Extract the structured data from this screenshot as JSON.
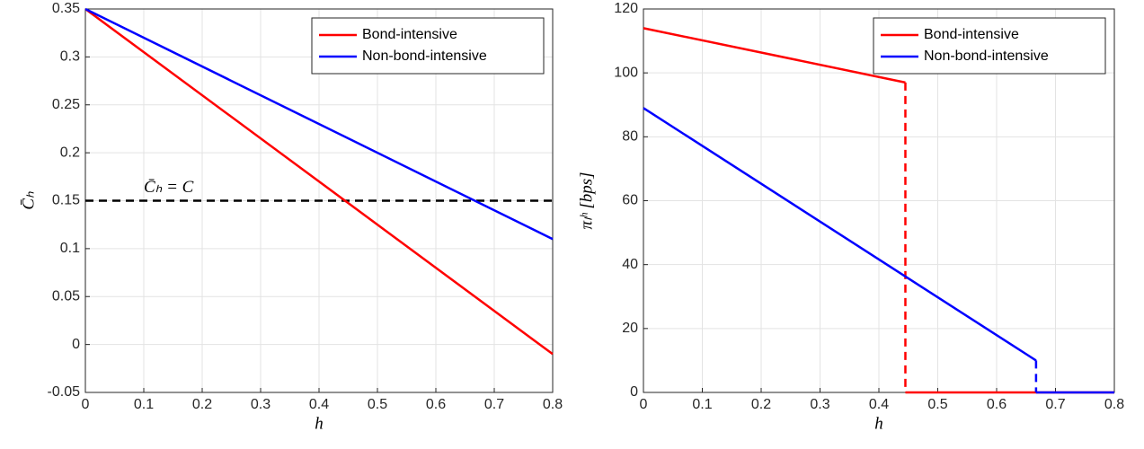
{
  "chart_data": [
    {
      "type": "line",
      "x_label": "h",
      "y_label": "C̄ₕ",
      "xlim": [
        0,
        0.8
      ],
      "xticks": [
        0,
        0.1,
        0.2,
        0.3,
        0.4,
        0.5,
        0.6,
        0.7,
        0.8
      ],
      "ylim": [
        -0.05,
        0.35
      ],
      "yticks": [
        -0.05,
        0,
        0.05,
        0.1,
        0.15,
        0.2,
        0.25,
        0.3,
        0.35
      ],
      "grid": true,
      "legend": "northeast",
      "series": [
        {
          "name": "Bond-intensive",
          "color": "#ff0000",
          "x": [
            0,
            0.8
          ],
          "values": [
            0.35,
            -0.01
          ]
        },
        {
          "name": "Non-bond-intensive",
          "color": "#0000ff",
          "x": [
            0,
            0.8
          ],
          "values": [
            0.35,
            0.11
          ]
        }
      ],
      "reference_line": {
        "value": 0.15,
        "label": "C̄ₕ = C",
        "color": "#000000",
        "style": "dashed"
      }
    },
    {
      "type": "line",
      "x_label": "h",
      "y_label": "πₗʰ [bps]",
      "xlim": [
        0,
        0.8
      ],
      "xticks": [
        0,
        0.1,
        0.2,
        0.3,
        0.4,
        0.5,
        0.6,
        0.7,
        0.8
      ],
      "ylim": [
        0,
        120
      ],
      "yticks": [
        0,
        20,
        40,
        60,
        80,
        100,
        120
      ],
      "grid": true,
      "legend": "northeast",
      "jump_style": "dashed",
      "series": [
        {
          "name": "Bond-intensive",
          "color": "#ff0000",
          "x": [
            0,
            0.445,
            0.445,
            0.8
          ],
          "values": [
            114,
            97,
            0,
            0
          ]
        },
        {
          "name": "Non-bond-intensive",
          "color": "#0000ff",
          "x": [
            0,
            0.667,
            0.667,
            0.8
          ],
          "values": [
            89,
            10,
            0,
            0
          ]
        }
      ]
    }
  ]
}
